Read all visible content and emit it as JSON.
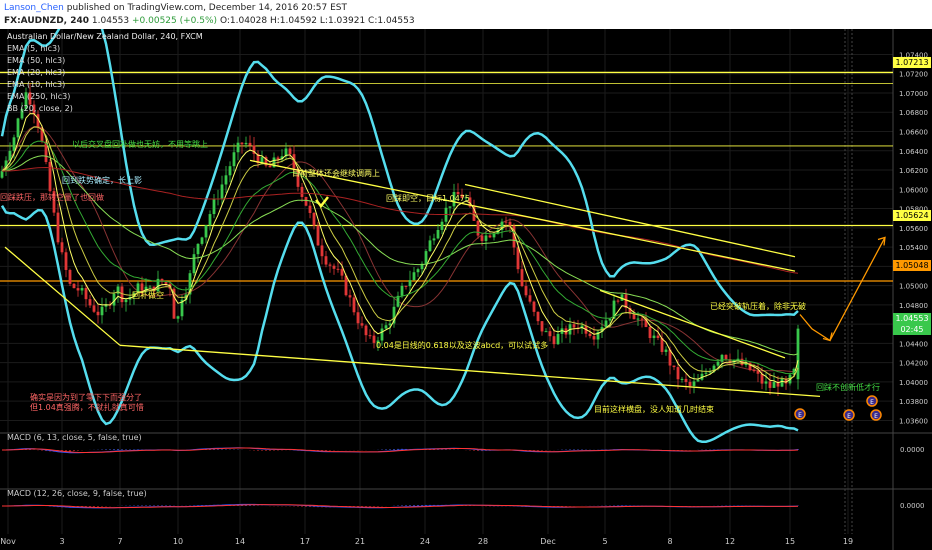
{
  "header": {
    "author": "Lanson_Chen",
    "published_text": "published on TradingView.com, December 14, 2016 20:57 EST",
    "symbol": "FX:AUDNZD, 240",
    "last": "1.04553",
    "change": "+0.00525 (+0.5%)",
    "open": "O:1.04028",
    "high": "H:1.04592",
    "low": "L:1.03921",
    "close": "C:1.04553"
  },
  "legend": {
    "title": "Australian Dollar/New Zealand Dollar, 240, FXCM",
    "items": [
      "EMA (5, hlc3)",
      "EMA (50, hlc3)",
      "EMA (20, hlc3)",
      "EMA (10, hlc3)",
      "EMA (250, hlc3)",
      "BB (20, close, 2)"
    ]
  },
  "price_labels": {
    "level1": "1.07213",
    "level2": "1.05624",
    "level3": "1.05048",
    "last": "1.04553",
    "countdown": "02:45"
  },
  "annotations": [
    "以后交叉盘回补做也无妨，不用等跳上",
    "回到跌势确定，长上影",
    "回补做空",
    "目前整体还会继续调两上",
    "回踩即空，目标1.0475",
    "已经突破轨压着，除非无破",
    "0.04是日线的0.618以及这波abcd，可以试试多",
    "回踩不创新低才行",
    "确实是因为到了零下下而强分了",
    "但1.04真强腾，不就扎就真可惜",
    "目前这样横盘，没人知道几时结束",
    "回踩跌压，那转空量了也回做"
  ],
  "events": [
    "E",
    "E",
    "E",
    "E",
    "E"
  ],
  "panels": {
    "macd1": {
      "label": "MACD (6, 13, close, 5, false, true)",
      "axis_label": "0.0000"
    },
    "macd2": {
      "label": "MACD (12, 26, close, 9, false, true)",
      "axis_label": "0.0000"
    }
  },
  "chart_data": {
    "type": "candlestick",
    "y_axis_ticks": [
      "1.07400",
      "1.07200",
      "1.07000",
      "1.06800",
      "1.06600",
      "1.06400",
      "1.06200",
      "1.06000",
      "1.05800",
      "1.05600",
      "1.05400",
      "1.05200",
      "1.05000",
      "1.04800",
      "1.04600",
      "1.04400",
      "1.04200",
      "1.04000",
      "1.03800",
      "1.03600"
    ],
    "x_axis_ticks": [
      "Nov",
      "3",
      "7",
      "10",
      "14",
      "17",
      "21",
      "24",
      "28",
      "Dec",
      "5",
      "8",
      "12",
      "15",
      "19"
    ],
    "ylim": [
      1.0348,
      1.0755
    ],
    "horizontal_levels": [
      {
        "value": 1.07213,
        "color": "#ffff44"
      },
      {
        "value": 1.05624,
        "color": "#ffff44"
      },
      {
        "value": 1.05048,
        "color": "#ff9900"
      },
      {
        "value": 1.071,
        "color": "#ffff44"
      },
      {
        "value": 1.0645,
        "color": "#ffff44"
      }
    ],
    "close_path": [
      [
        0,
        1.0612
      ],
      [
        8,
        1.064
      ],
      [
        14,
        1.0655
      ],
      [
        20,
        1.068
      ],
      [
        26,
        1.07
      ],
      [
        32,
        1.069
      ],
      [
        40,
        1.066
      ],
      [
        48,
        1.061
      ],
      [
        56,
        1.056
      ],
      [
        62,
        1.053
      ],
      [
        70,
        1.05
      ],
      [
        80,
        1.0495
      ],
      [
        90,
        1.048
      ],
      [
        100,
        1.047
      ],
      [
        108,
        1.048
      ],
      [
        116,
        1.05
      ],
      [
        124,
        1.0485
      ],
      [
        132,
        1.049
      ],
      [
        140,
        1.05
      ],
      [
        150,
        1.0495
      ],
      [
        160,
        1.0505
      ],
      [
        170,
        1.05
      ],
      [
        176,
        1.0455
      ],
      [
        182,
        1.049
      ],
      [
        188,
        1.05
      ],
      [
        196,
        1.054
      ],
      [
        204,
        1.056
      ],
      [
        212,
        1.058
      ],
      [
        220,
        1.06
      ],
      [
        228,
        1.062
      ],
      [
        236,
        1.064
      ],
      [
        244,
        1.065
      ],
      [
        252,
        1.064
      ],
      [
        260,
        1.063
      ],
      [
        268,
        1.062
      ],
      [
        276,
        1.063
      ],
      [
        284,
        1.064
      ],
      [
        292,
        1.063
      ],
      [
        300,
        1.06
      ],
      [
        308,
        1.058
      ],
      [
        316,
        1.055
      ],
      [
        324,
        1.053
      ],
      [
        332,
        1.052
      ],
      [
        340,
        1.051
      ],
      [
        348,
        1.049
      ],
      [
        356,
        1.047
      ],
      [
        364,
        1.045
      ],
      [
        372,
        1.044
      ],
      [
        380,
        1.045
      ],
      [
        388,
        1.046
      ],
      [
        396,
        1.048
      ],
      [
        404,
        1.05
      ],
      [
        412,
        1.051
      ],
      [
        420,
        1.052
      ],
      [
        428,
        1.054
      ],
      [
        436,
        1.056
      ],
      [
        444,
        1.0575
      ],
      [
        452,
        1.059
      ],
      [
        460,
        1.0595
      ],
      [
        466,
        1.059
      ],
      [
        472,
        1.057
      ],
      [
        478,
        1.0555
      ],
      [
        484,
        1.055
      ],
      [
        490,
        1.0555
      ],
      [
        496,
        1.056
      ],
      [
        504,
        1.057
      ],
      [
        510,
        1.056
      ],
      [
        516,
        1.053
      ],
      [
        522,
        1.05
      ],
      [
        530,
        1.048
      ],
      [
        538,
        1.046
      ],
      [
        546,
        1.045
      ],
      [
        554,
        1.0445
      ],
      [
        562,
        1.045
      ],
      [
        570,
        1.0455
      ],
      [
        578,
        1.046
      ],
      [
        586,
        1.0455
      ],
      [
        594,
        1.045
      ],
      [
        602,
        1.046
      ],
      [
        610,
        1.047
      ],
      [
        618,
        1.049
      ],
      [
        626,
        1.048
      ],
      [
        634,
        1.047
      ],
      [
        642,
        1.046
      ],
      [
        650,
        1.045
      ],
      [
        658,
        1.044
      ],
      [
        666,
        1.043
      ],
      [
        674,
        1.041
      ],
      [
        682,
        1.04
      ],
      [
        690,
        1.0395
      ],
      [
        698,
        1.04
      ],
      [
        706,
        1.041
      ],
      [
        714,
        1.042
      ],
      [
        722,
        1.043
      ],
      [
        730,
        1.0425
      ],
      [
        738,
        1.042
      ],
      [
        746,
        1.0415
      ],
      [
        754,
        1.041
      ],
      [
        762,
        1.04
      ],
      [
        770,
        1.0395
      ],
      [
        778,
        1.04
      ],
      [
        786,
        1.0395
      ],
      [
        794,
        1.041
      ],
      [
        800,
        1.0455
      ]
    ],
    "trendlines": [
      {
        "x1": 250,
        "y1": 1.063,
        "x2": 795,
        "y2": 1.0515,
        "color": "#ffff44"
      },
      {
        "x1": 465,
        "y1": 1.0605,
        "x2": 795,
        "y2": 1.053,
        "color": "#ffff44"
      },
      {
        "x1": 120,
        "y1": 1.0438,
        "x2": 820,
        "y2": 1.0385,
        "color": "#ffff44"
      },
      {
        "x1": 5,
        "y1": 1.054,
        "x2": 120,
        "y2": 1.0438,
        "color": "#ffff44"
      },
      {
        "x1": 600,
        "y1": 1.0495,
        "x2": 785,
        "y2": 1.0425,
        "color": "#ffff44"
      }
    ],
    "projection_path": [
      [
        800,
        1.047
      ],
      [
        812,
        1.0455
      ],
      [
        830,
        1.0443
      ],
      [
        885,
        1.055
      ]
    ],
    "series": [
      {
        "name": "EMA (5, hlc3)",
        "color": "#ffff66"
      },
      {
        "name": "EMA (50, hlc3)",
        "color": "#88dd55"
      },
      {
        "name": "EMA (20, hlc3)",
        "color": "#33aa33"
      },
      {
        "name": "EMA (10, hlc3)",
        "color": "#cccc44"
      },
      {
        "name": "EMA (250, hlc3)",
        "color": "#aa2222"
      },
      {
        "name": "BB (20, close, 2)",
        "color": "#55ddee"
      }
    ]
  },
  "colors": {
    "up": "#39c84c",
    "down": "#e03636",
    "bb": "#55ddee",
    "grid": "#1b1b1b",
    "level": "#ffff44",
    "level_orange": "#ff9900"
  }
}
